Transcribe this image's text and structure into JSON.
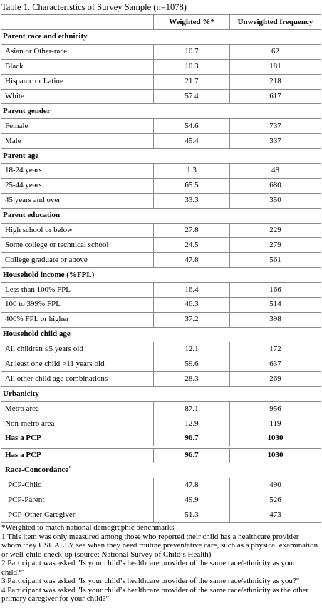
{
  "caption": "Table 1. Characteristics of Survey Sample (n=1078)",
  "columns": {
    "weighted": "Weighted %*",
    "unweighted": "Unweighted frequency"
  },
  "sections": [
    {
      "title": "Parent race and ethnicity",
      "rows": [
        {
          "label": "Asian or Other-race",
          "weighted": "10.7",
          "unweighted": "62"
        },
        {
          "label": "Black",
          "weighted": "10.3",
          "unweighted": "181"
        },
        {
          "label": "Hispanic or Latine",
          "weighted": "21.7",
          "unweighted": "218"
        },
        {
          "label": "White",
          "weighted": "57.4",
          "unweighted": "617"
        }
      ]
    },
    {
      "title": "Parent gender",
      "rows": [
        {
          "label": "Female",
          "weighted": "54.6",
          "unweighted": "737"
        },
        {
          "label": "Male",
          "weighted": "45.4",
          "unweighted": "337"
        }
      ]
    },
    {
      "title": "Parent age",
      "rows": [
        {
          "label": "18-24 years",
          "weighted": "1.3",
          "unweighted": "48"
        },
        {
          "label": "25-44 years",
          "weighted": "65.5",
          "unweighted": "680"
        },
        {
          "label": "45 years and over",
          "weighted": "33.3",
          "unweighted": "350"
        }
      ]
    },
    {
      "title": "Parent education",
      "rows": [
        {
          "label": "High school or below",
          "weighted": "27.8",
          "unweighted": "229"
        },
        {
          "label": "Some college or technical school",
          "weighted": "24.5",
          "unweighted": "279"
        },
        {
          "label": "College graduate or above",
          "weighted": "47.8",
          "unweighted": "561"
        }
      ]
    },
    {
      "title": "Household income (%FPL)",
      "rows": [
        {
          "label": "Less than 100% FPL",
          "weighted": "16.4",
          "unweighted": "166"
        },
        {
          "label": "100 to 399% FPL",
          "weighted": "46.3",
          "unweighted": "514"
        },
        {
          "label": "400% FPL or higher",
          "weighted": "37.2",
          "unweighted": "398"
        }
      ]
    },
    {
      "title": "Household child age",
      "rows": [
        {
          "label": "All children ≤5 years old",
          "weighted": "12.1",
          "unweighted": "172"
        },
        {
          "label": "At least one child >11 years old",
          "weighted": "59.6",
          "unweighted": "637"
        },
        {
          "label": "All other child age combinations",
          "weighted": "28.3",
          "unweighted": "269"
        }
      ]
    },
    {
      "title": "Urbanicity",
      "rows": [
        {
          "label": "Metro area",
          "weighted": "87.1",
          "unweighted": "956"
        },
        {
          "label": "Non-metro area",
          "weighted": "12.9",
          "unweighted": "119"
        }
      ]
    }
  ],
  "pcp_row_1": {
    "label": "Has a PCP",
    "weighted": "96.7",
    "unweighted": "1030"
  },
  "pcp_row_2": {
    "label": "Has a PCP",
    "weighted": "96.7",
    "unweighted": "1030"
  },
  "concordance": {
    "title": "Race-Concordance",
    "title_sup": "1",
    "rows": [
      {
        "label": "PCP-Child",
        "sup": "2",
        "weighted": "47.8",
        "unweighted": "490"
      },
      {
        "label": "PCP-Parent",
        "sup": "",
        "weighted": "49.9",
        "unweighted": "526"
      },
      {
        "label": "PCP-Other Caregiver",
        "sup": "",
        "weighted": "51.3",
        "unweighted": "473"
      }
    ]
  },
  "footnotes": [
    "*Weighted to match national demographic benchmarks",
    "1 This item was only measured among those who reported their child has a healthcare provider whom they USUALLY see when they need routine preventative care, such as a physical examination or well-child check-up (source: National Survey of Child’s Health)",
    "2 Participant was asked \"Is your child’s healthcare provider of the same race/ethnicity as your child?\"",
    "3 Participant was asked \"Is your child’s healthcare provider of the same race/ethnicity as you?\"",
    "4 Participant was asked \"Is your child’s healthcare provider of the same race/ethnicity as the other primary caregiver for your child?\""
  ]
}
